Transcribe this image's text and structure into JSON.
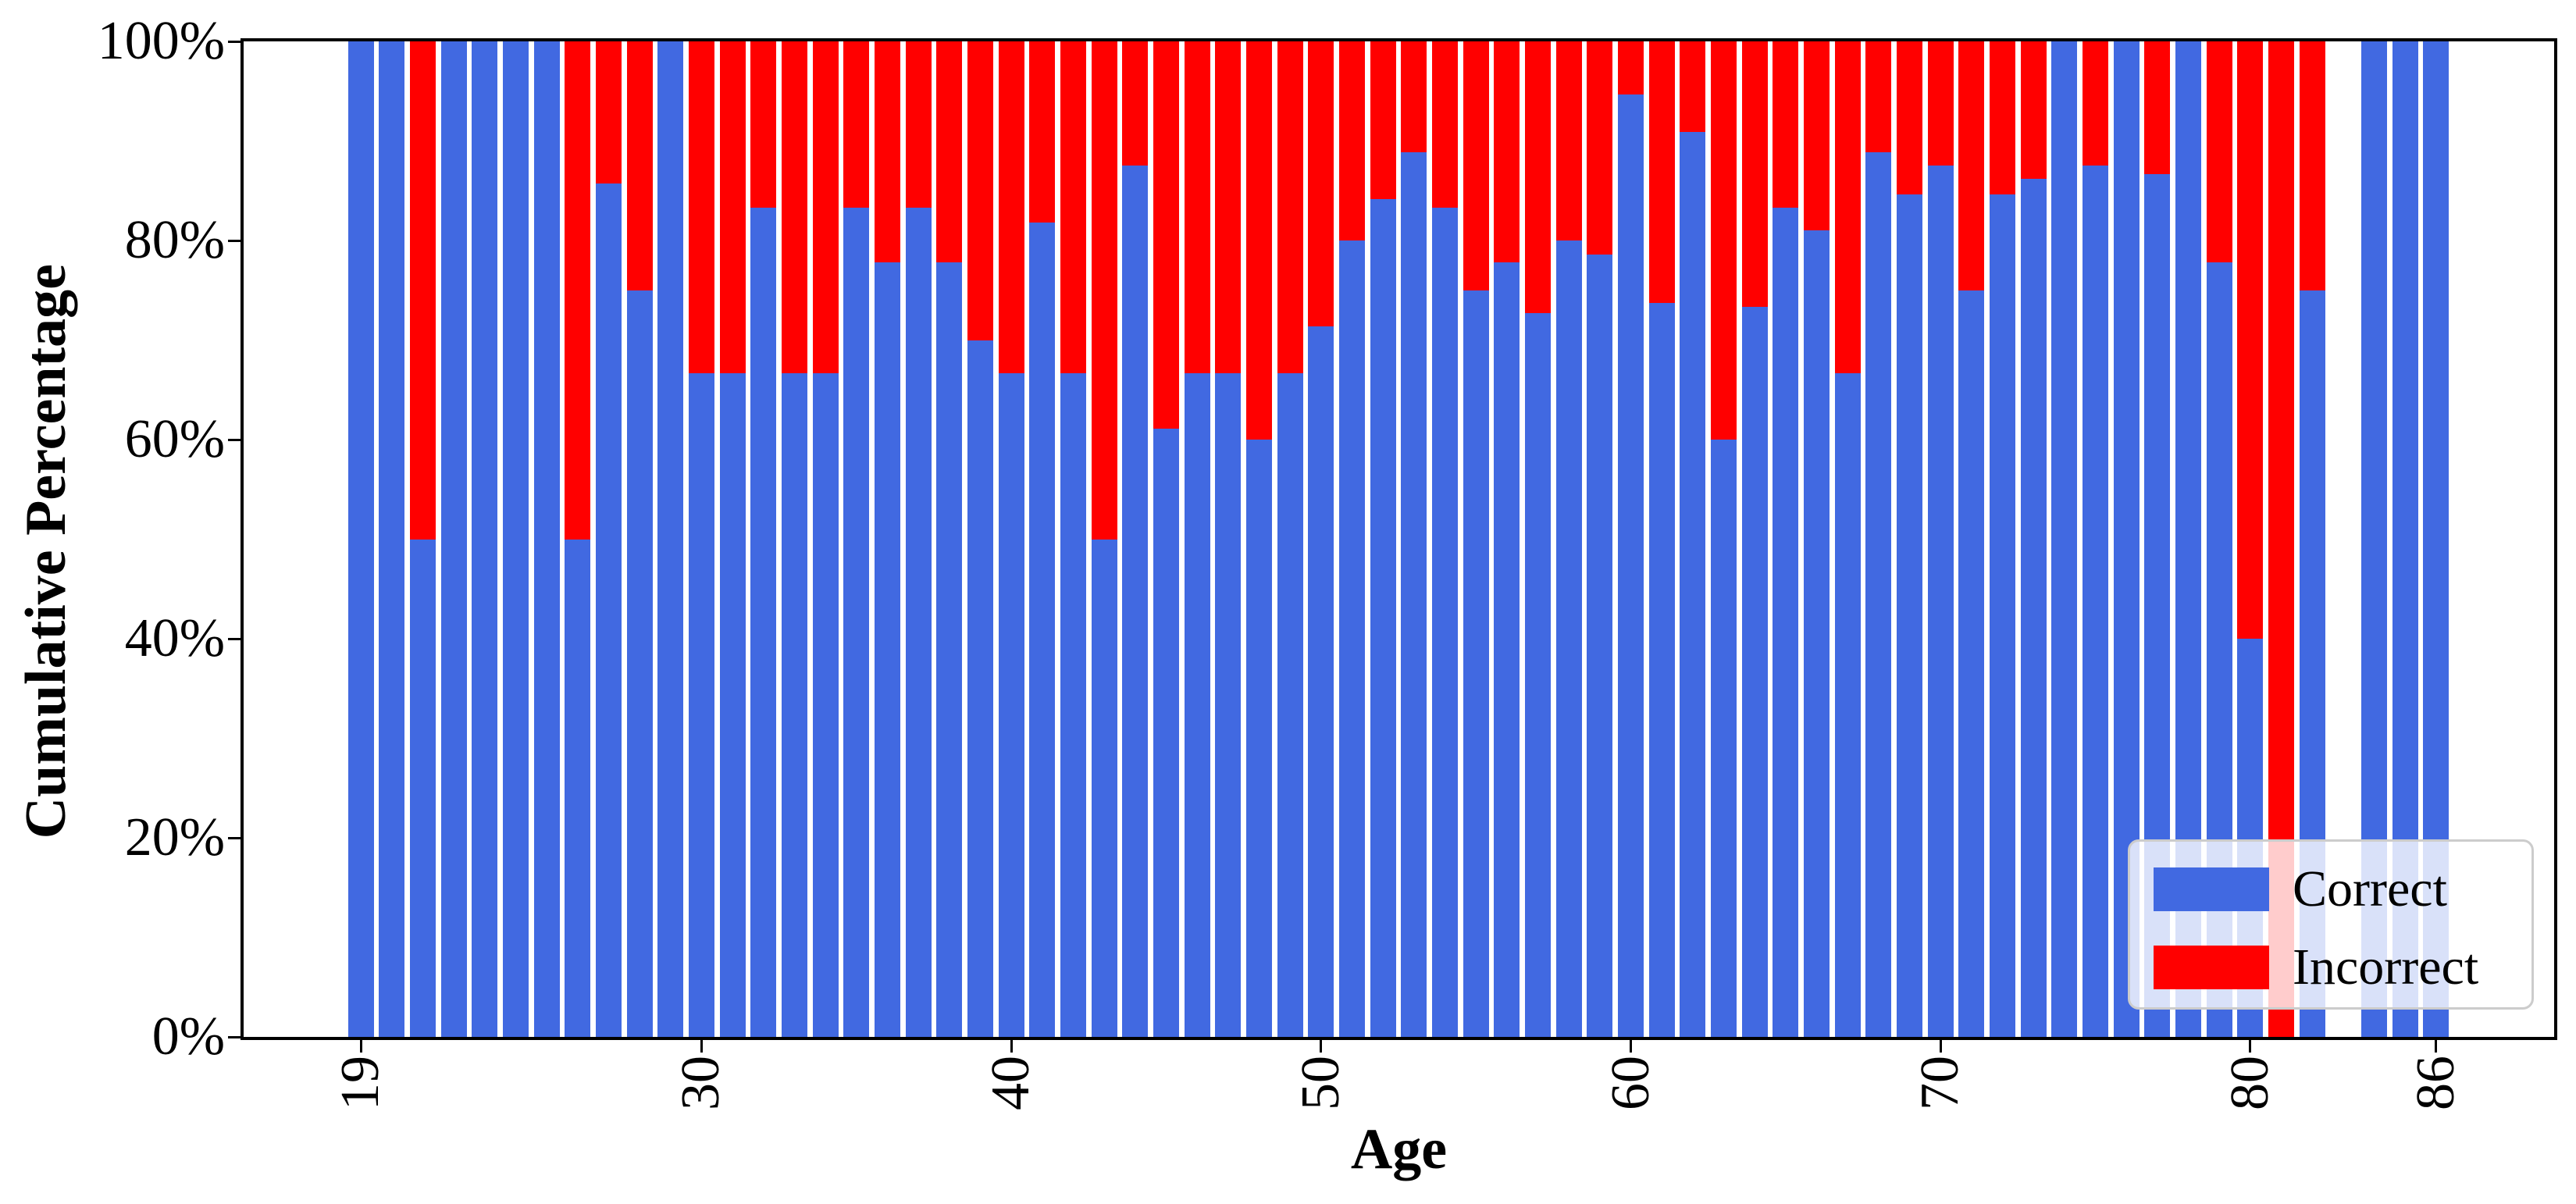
{
  "figure": {
    "ylabel": "Cumulative Percentage",
    "xlabel": "Age",
    "ytick_labels": [
      "0%",
      "20%",
      "40%",
      "60%",
      "80%",
      "100%"
    ],
    "xtick_labels": [
      "19",
      "30",
      "40",
      "50",
      "60",
      "70",
      "80",
      "86"
    ],
    "legend": {
      "items": [
        {
          "label": "Correct",
          "color": "#4169E1"
        },
        {
          "label": "Incorrect",
          "color": "#FF0000"
        }
      ]
    },
    "colors": {
      "correct": "#4169E1",
      "incorrect": "#FF0000",
      "axis": "#000000",
      "legend_border": "#CCCCCC",
      "background": "#FFFFFF"
    }
  },
  "chart_data": {
    "type": "bar",
    "stacked": true,
    "title": "",
    "xlabel": "Age",
    "ylabel": "Cumulative Percentage",
    "legend_position": "lower right",
    "grid": false,
    "y_axis": {
      "unit": "%",
      "range": [
        0,
        100
      ],
      "ticks": [
        0,
        20,
        40,
        60,
        80,
        100
      ]
    },
    "x_axis": {
      "range": [
        19,
        86
      ],
      "tick_ages": [
        19,
        30,
        40,
        50,
        60,
        70,
        80,
        86
      ],
      "missing_ages": [
        83
      ]
    },
    "series_names": [
      "Correct",
      "Incorrect"
    ],
    "points": [
      {
        "age": 19,
        "correct_pct": 100,
        "incorrect_pct": 0
      },
      {
        "age": 20,
        "correct_pct": 100,
        "incorrect_pct": 0
      },
      {
        "age": 21,
        "correct_pct": 50,
        "incorrect_pct": 50
      },
      {
        "age": 22,
        "correct_pct": 100,
        "incorrect_pct": 0
      },
      {
        "age": 23,
        "correct_pct": 100,
        "incorrect_pct": 0
      },
      {
        "age": 24,
        "correct_pct": 100,
        "incorrect_pct": 0
      },
      {
        "age": 25,
        "correct_pct": 100,
        "incorrect_pct": 0
      },
      {
        "age": 26,
        "correct_pct": 50,
        "incorrect_pct": 50
      },
      {
        "age": 27,
        "correct_pct": 85.7,
        "incorrect_pct": 14.3
      },
      {
        "age": 28,
        "correct_pct": 75,
        "incorrect_pct": 25
      },
      {
        "age": 29,
        "correct_pct": 100,
        "incorrect_pct": 0
      },
      {
        "age": 30,
        "correct_pct": 66.7,
        "incorrect_pct": 33.3
      },
      {
        "age": 31,
        "correct_pct": 66.7,
        "incorrect_pct": 33.3
      },
      {
        "age": 32,
        "correct_pct": 83.3,
        "incorrect_pct": 16.7
      },
      {
        "age": 33,
        "correct_pct": 66.7,
        "incorrect_pct": 33.3
      },
      {
        "age": 34,
        "correct_pct": 66.7,
        "incorrect_pct": 33.3
      },
      {
        "age": 35,
        "correct_pct": 83.3,
        "incorrect_pct": 16.7
      },
      {
        "age": 36,
        "correct_pct": 77.8,
        "incorrect_pct": 22.2
      },
      {
        "age": 37,
        "correct_pct": 83.3,
        "incorrect_pct": 16.7
      },
      {
        "age": 38,
        "correct_pct": 77.8,
        "incorrect_pct": 22.2
      },
      {
        "age": 39,
        "correct_pct": 70,
        "incorrect_pct": 30
      },
      {
        "age": 40,
        "correct_pct": 66.7,
        "incorrect_pct": 33.3
      },
      {
        "age": 41,
        "correct_pct": 81.8,
        "incorrect_pct": 18.2
      },
      {
        "age": 42,
        "correct_pct": 66.7,
        "incorrect_pct": 33.3
      },
      {
        "age": 43,
        "correct_pct": 50,
        "incorrect_pct": 50
      },
      {
        "age": 44,
        "correct_pct": 87.5,
        "incorrect_pct": 12.5
      },
      {
        "age": 45,
        "correct_pct": 61.1,
        "incorrect_pct": 38.9
      },
      {
        "age": 46,
        "correct_pct": 66.7,
        "incorrect_pct": 33.3
      },
      {
        "age": 47,
        "correct_pct": 66.7,
        "incorrect_pct": 33.3
      },
      {
        "age": 48,
        "correct_pct": 60,
        "incorrect_pct": 40
      },
      {
        "age": 49,
        "correct_pct": 66.7,
        "incorrect_pct": 33.3
      },
      {
        "age": 50,
        "correct_pct": 71.4,
        "incorrect_pct": 28.6
      },
      {
        "age": 51,
        "correct_pct": 80,
        "incorrect_pct": 20
      },
      {
        "age": 52,
        "correct_pct": 84.2,
        "incorrect_pct": 15.8
      },
      {
        "age": 53,
        "correct_pct": 88.9,
        "incorrect_pct": 11.1
      },
      {
        "age": 54,
        "correct_pct": 83.3,
        "incorrect_pct": 16.7
      },
      {
        "age": 55,
        "correct_pct": 75,
        "incorrect_pct": 25
      },
      {
        "age": 56,
        "correct_pct": 77.8,
        "incorrect_pct": 22.2
      },
      {
        "age": 57,
        "correct_pct": 72.7,
        "incorrect_pct": 27.3
      },
      {
        "age": 58,
        "correct_pct": 80,
        "incorrect_pct": 20
      },
      {
        "age": 59,
        "correct_pct": 78.6,
        "incorrect_pct": 21.4
      },
      {
        "age": 60,
        "correct_pct": 94.7,
        "incorrect_pct": 5.3
      },
      {
        "age": 61,
        "correct_pct": 73.7,
        "incorrect_pct": 26.3
      },
      {
        "age": 62,
        "correct_pct": 90.9,
        "incorrect_pct": 9.1
      },
      {
        "age": 63,
        "correct_pct": 60,
        "incorrect_pct": 40
      },
      {
        "age": 64,
        "correct_pct": 73.3,
        "incorrect_pct": 26.7
      },
      {
        "age": 65,
        "correct_pct": 83.3,
        "incorrect_pct": 16.7
      },
      {
        "age": 66,
        "correct_pct": 81,
        "incorrect_pct": 19
      },
      {
        "age": 67,
        "correct_pct": 66.7,
        "incorrect_pct": 33.3
      },
      {
        "age": 68,
        "correct_pct": 88.9,
        "incorrect_pct": 11.1
      },
      {
        "age": 69,
        "correct_pct": 84.6,
        "incorrect_pct": 15.4
      },
      {
        "age": 70,
        "correct_pct": 87.5,
        "incorrect_pct": 12.5
      },
      {
        "age": 71,
        "correct_pct": 75,
        "incorrect_pct": 25
      },
      {
        "age": 72,
        "correct_pct": 84.6,
        "incorrect_pct": 15.4
      },
      {
        "age": 73,
        "correct_pct": 86.2,
        "incorrect_pct": 13.8
      },
      {
        "age": 74,
        "correct_pct": 100,
        "incorrect_pct": 0
      },
      {
        "age": 75,
        "correct_pct": 87.5,
        "incorrect_pct": 12.5
      },
      {
        "age": 76,
        "correct_pct": 100,
        "incorrect_pct": 0
      },
      {
        "age": 77,
        "correct_pct": 86.7,
        "incorrect_pct": 13.3
      },
      {
        "age": 78,
        "correct_pct": 100,
        "incorrect_pct": 0
      },
      {
        "age": 79,
        "correct_pct": 77.8,
        "incorrect_pct": 22.2
      },
      {
        "age": 80,
        "correct_pct": 40,
        "incorrect_pct": 60
      },
      {
        "age": 81,
        "correct_pct": 0,
        "incorrect_pct": 100
      },
      {
        "age": 82,
        "correct_pct": 75,
        "incorrect_pct": 25
      },
      {
        "age": 84,
        "correct_pct": 100,
        "incorrect_pct": 0
      },
      {
        "age": 85,
        "correct_pct": 100,
        "incorrect_pct": 0
      },
      {
        "age": 86,
        "correct_pct": 100,
        "incorrect_pct": 0
      }
    ]
  }
}
